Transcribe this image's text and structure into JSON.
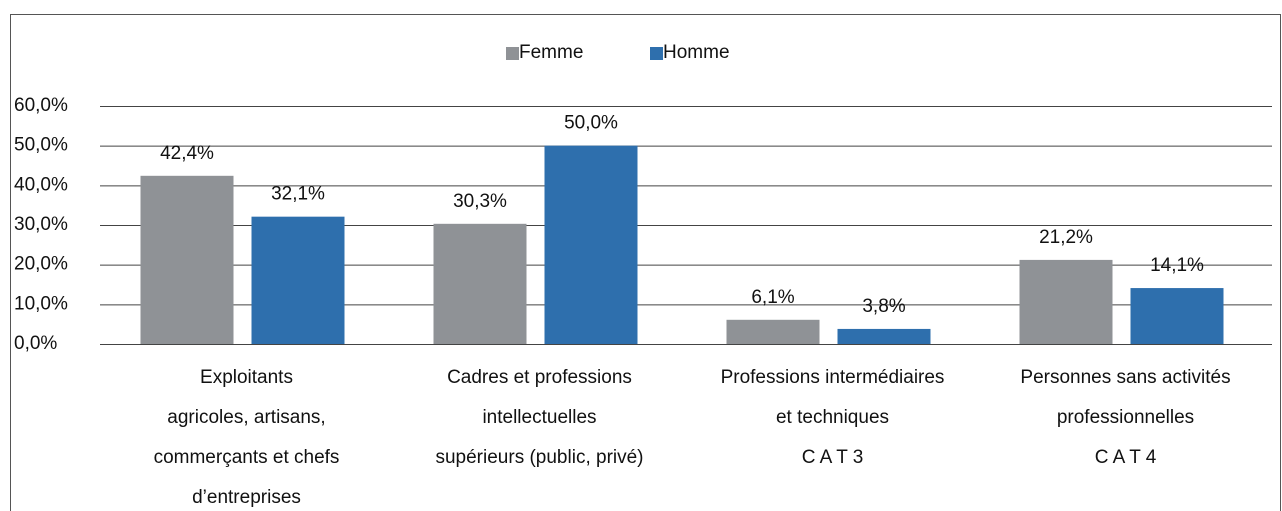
{
  "chart_data": {
    "type": "bar",
    "categories": [
      [
        "Exploitants",
        "agricoles, artisans,",
        "commerçants et chefs",
        "d’entreprises"
      ],
      [
        "Cadres et professions",
        "intellectuelles",
        "supérieurs (public, privé)"
      ],
      [
        "Professions intermédiaires",
        "et techniques",
        "C A T 3"
      ],
      [
        "Personnes sans activités",
        "professionnelles",
        "C A T 4"
      ]
    ],
    "series": [
      {
        "name": "Femme",
        "color": "#8f9296",
        "values": [
          42.4,
          30.3,
          6.1,
          21.2
        ],
        "value_labels": [
          "42,4%",
          "30,3%",
          "6,1%",
          "21,2%"
        ]
      },
      {
        "name": "Homme",
        "color": "#2e6fad",
        "values": [
          32.1,
          50.0,
          3.8,
          14.1
        ],
        "value_labels": [
          "32,1%",
          "50,0%",
          "3,8%",
          "14,1%"
        ]
      }
    ],
    "ylim": [
      0,
      60
    ],
    "yticks": [
      {
        "value": 0,
        "label": "0,0%"
      },
      {
        "value": 10,
        "label": "10,0%"
      },
      {
        "value": 20,
        "label": "20,0%"
      },
      {
        "value": 30,
        "label": "30,0%"
      },
      {
        "value": 40,
        "label": "40,0%"
      },
      {
        "value": 50,
        "label": "50,0%"
      },
      {
        "value": 60,
        "label": "60,0%"
      }
    ],
    "grid": true,
    "legend": "top"
  }
}
